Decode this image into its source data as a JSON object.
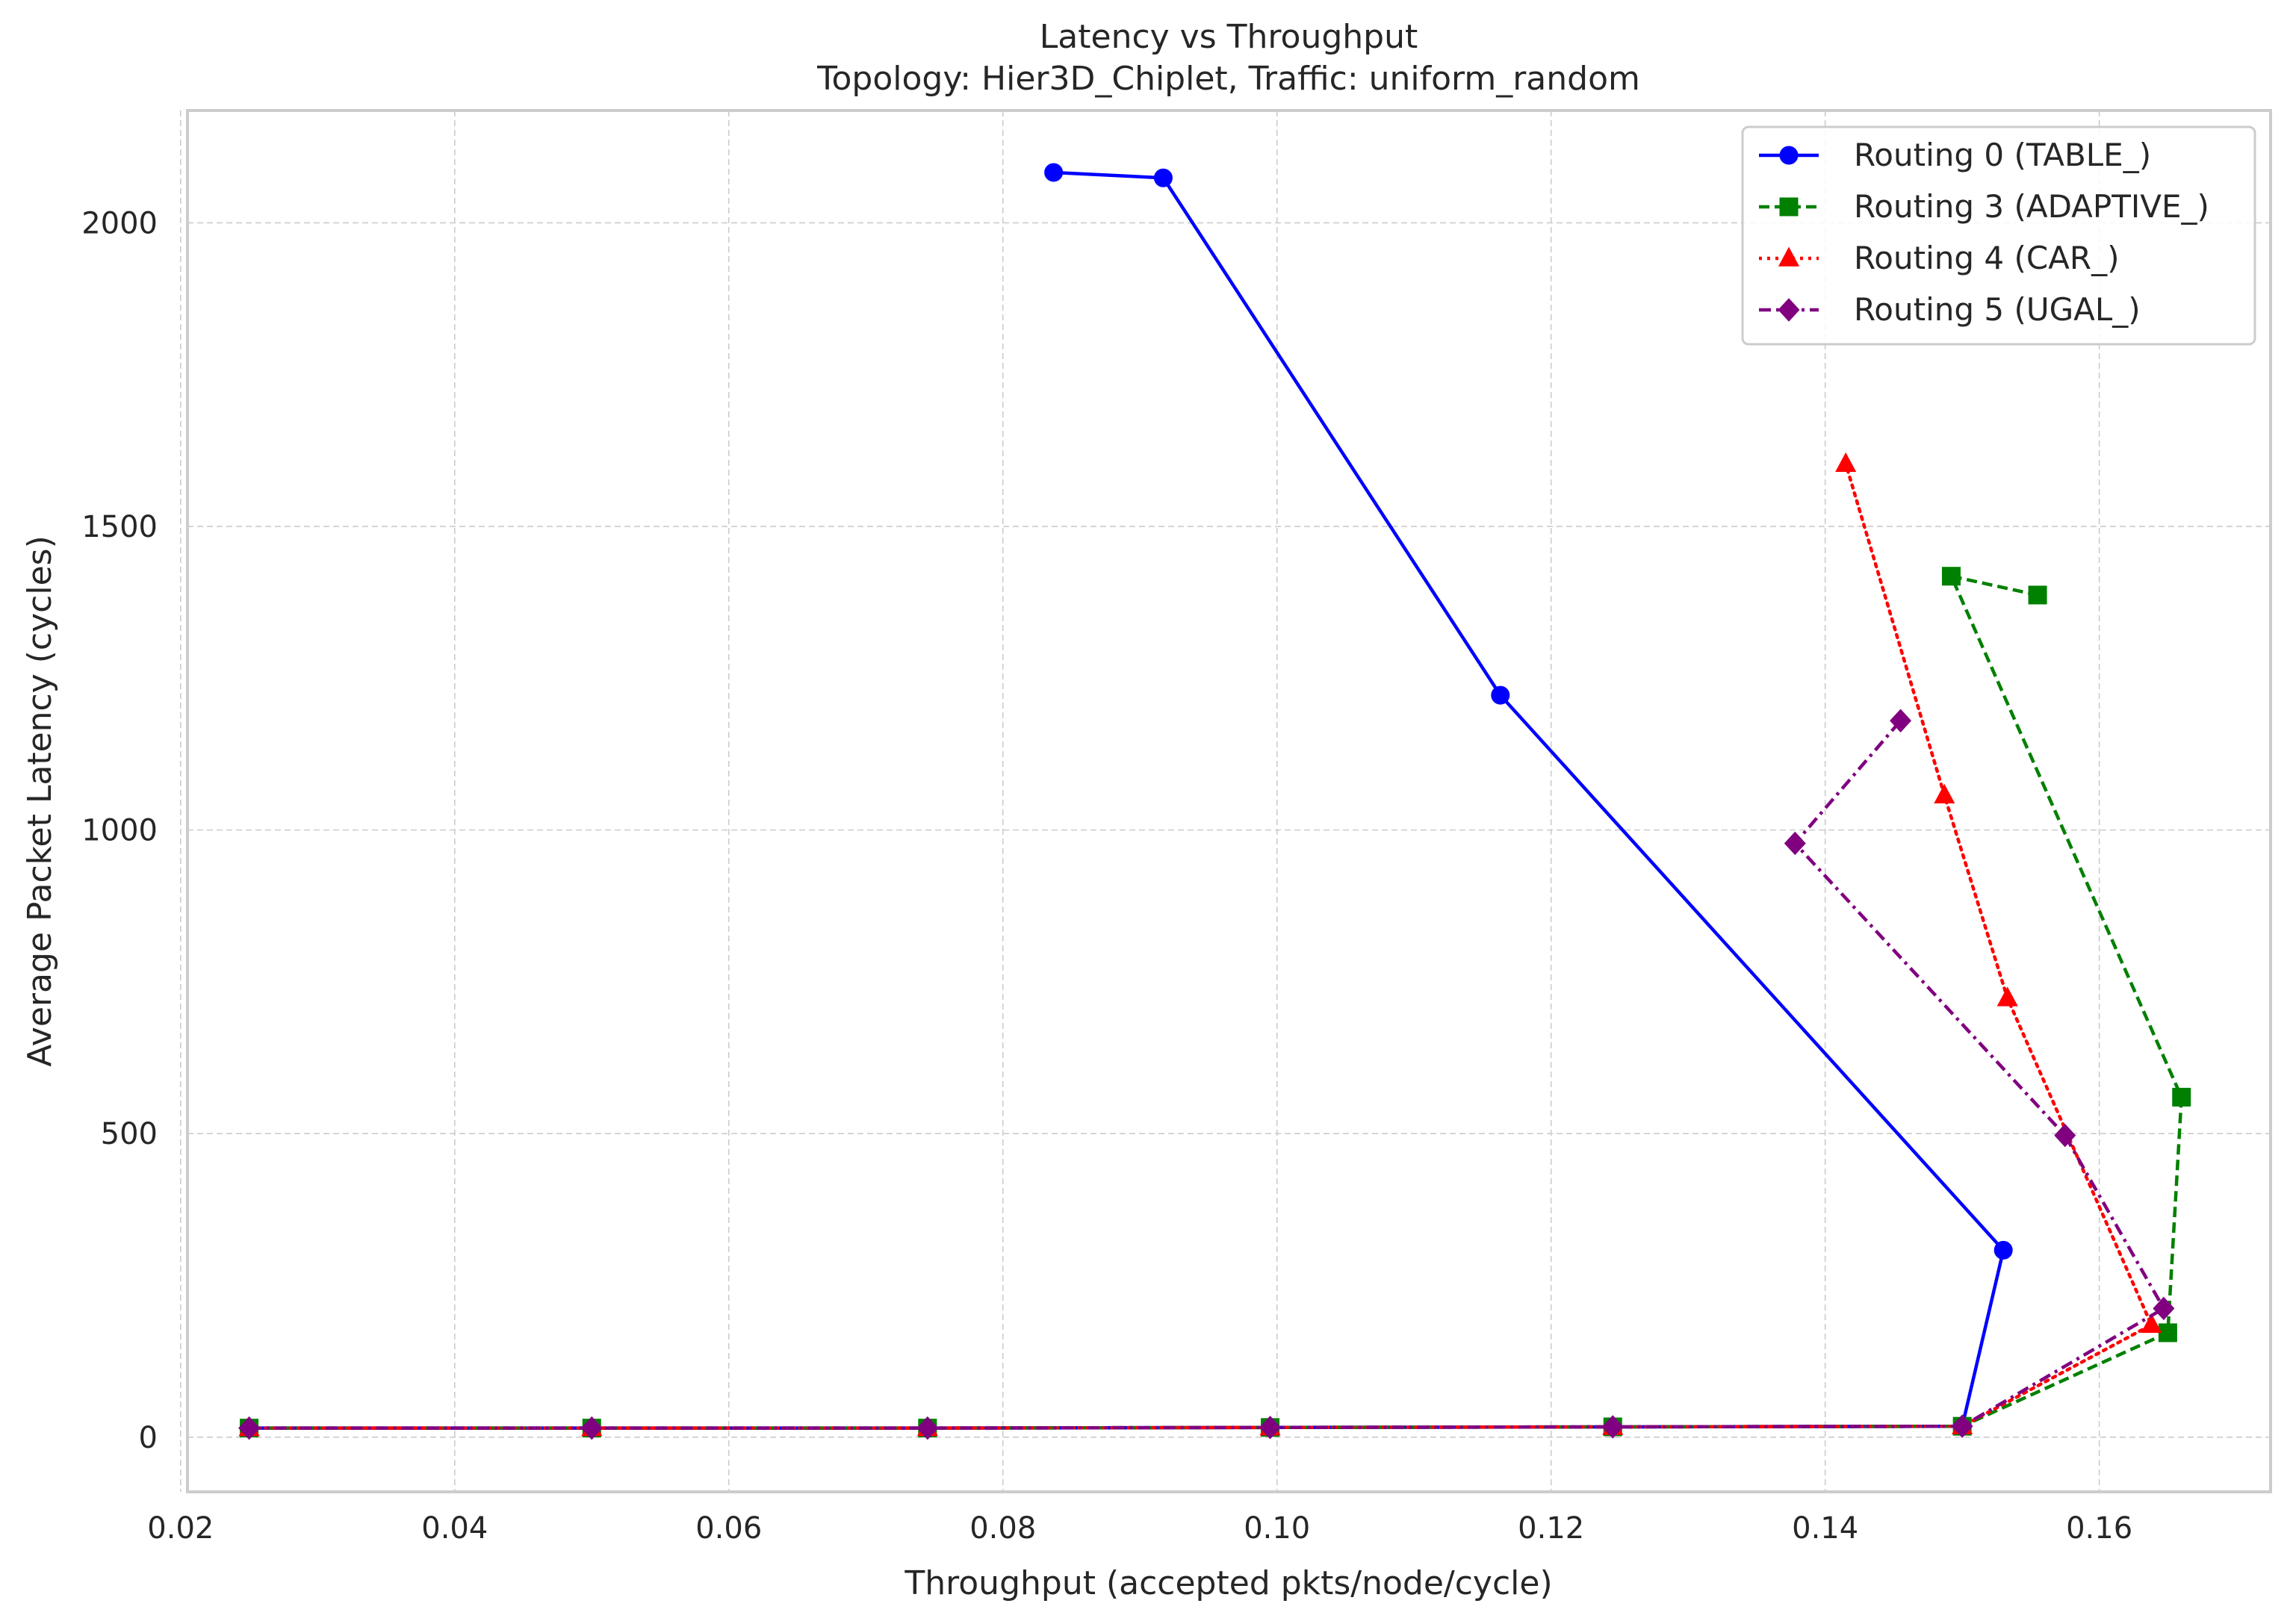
{
  "chart_data": {
    "type": "line",
    "title": "Latency vs Throughput",
    "subtitle": "Topology: Hier3D_Chiplet, Traffic: uniform_random",
    "xlabel": "Throughput (accepted pkts/node/cycle)",
    "ylabel": "Average Packet Latency (cycles)",
    "xlim": [
      0.0205,
      0.1725
    ],
    "ylim": [
      -90,
      2185
    ],
    "xticks": [
      0.02,
      0.04,
      0.06,
      0.08,
      0.1,
      0.12,
      0.14,
      0.16
    ],
    "xtick_labels": [
      "0.02",
      "0.04",
      "0.06",
      "0.08",
      "0.10",
      "0.12",
      "0.14",
      "0.16"
    ],
    "yticks": [
      0,
      500,
      1000,
      1500,
      2000
    ],
    "ytick_labels": [
      "0",
      "500",
      "1000",
      "1500",
      "2000"
    ],
    "grid": true,
    "legend_position": "top-right",
    "series": [
      {
        "name": "Routing 0 (TABLE_)",
        "color": "#0000ff",
        "marker": "circle",
        "line_style": "solid",
        "x": [
          0.025,
          0.05,
          0.0745,
          0.0995,
          0.1245,
          0.15,
          0.153,
          0.1163,
          0.0917,
          0.0837
        ],
        "y": [
          15,
          15,
          15,
          16,
          17,
          18,
          308,
          1222,
          2074,
          2083
        ]
      },
      {
        "name": "Routing 3 (ADAPTIVE_)",
        "color": "#008000",
        "marker": "square",
        "line_style": "dashed",
        "x": [
          0.025,
          0.05,
          0.0745,
          0.0995,
          0.1245,
          0.15,
          0.165,
          0.166,
          0.1492,
          0.1555
        ],
        "y": [
          15,
          15,
          15,
          16,
          17,
          18,
          172,
          560,
          1418,
          1387
        ]
      },
      {
        "name": "Routing 4 (CAR_)",
        "color": "#ff0000",
        "marker": "triangle",
        "line_style": "dotted",
        "x": [
          0.025,
          0.05,
          0.0745,
          0.0995,
          0.1245,
          0.15,
          0.1638,
          0.1533,
          0.1487,
          0.1415
        ],
        "y": [
          15,
          15,
          15,
          16,
          17,
          18,
          185,
          723,
          1057,
          1603
        ]
      },
      {
        "name": "Routing 5 (UGAL_)",
        "color": "#800080",
        "marker": "diamond",
        "line_style": "dashdot",
        "x": [
          0.025,
          0.05,
          0.0745,
          0.0995,
          0.1245,
          0.15,
          0.1647,
          0.1575,
          0.1378,
          0.1455
        ],
        "y": [
          15,
          15,
          15,
          16,
          17,
          18,
          212,
          497,
          978,
          1180
        ]
      }
    ]
  }
}
